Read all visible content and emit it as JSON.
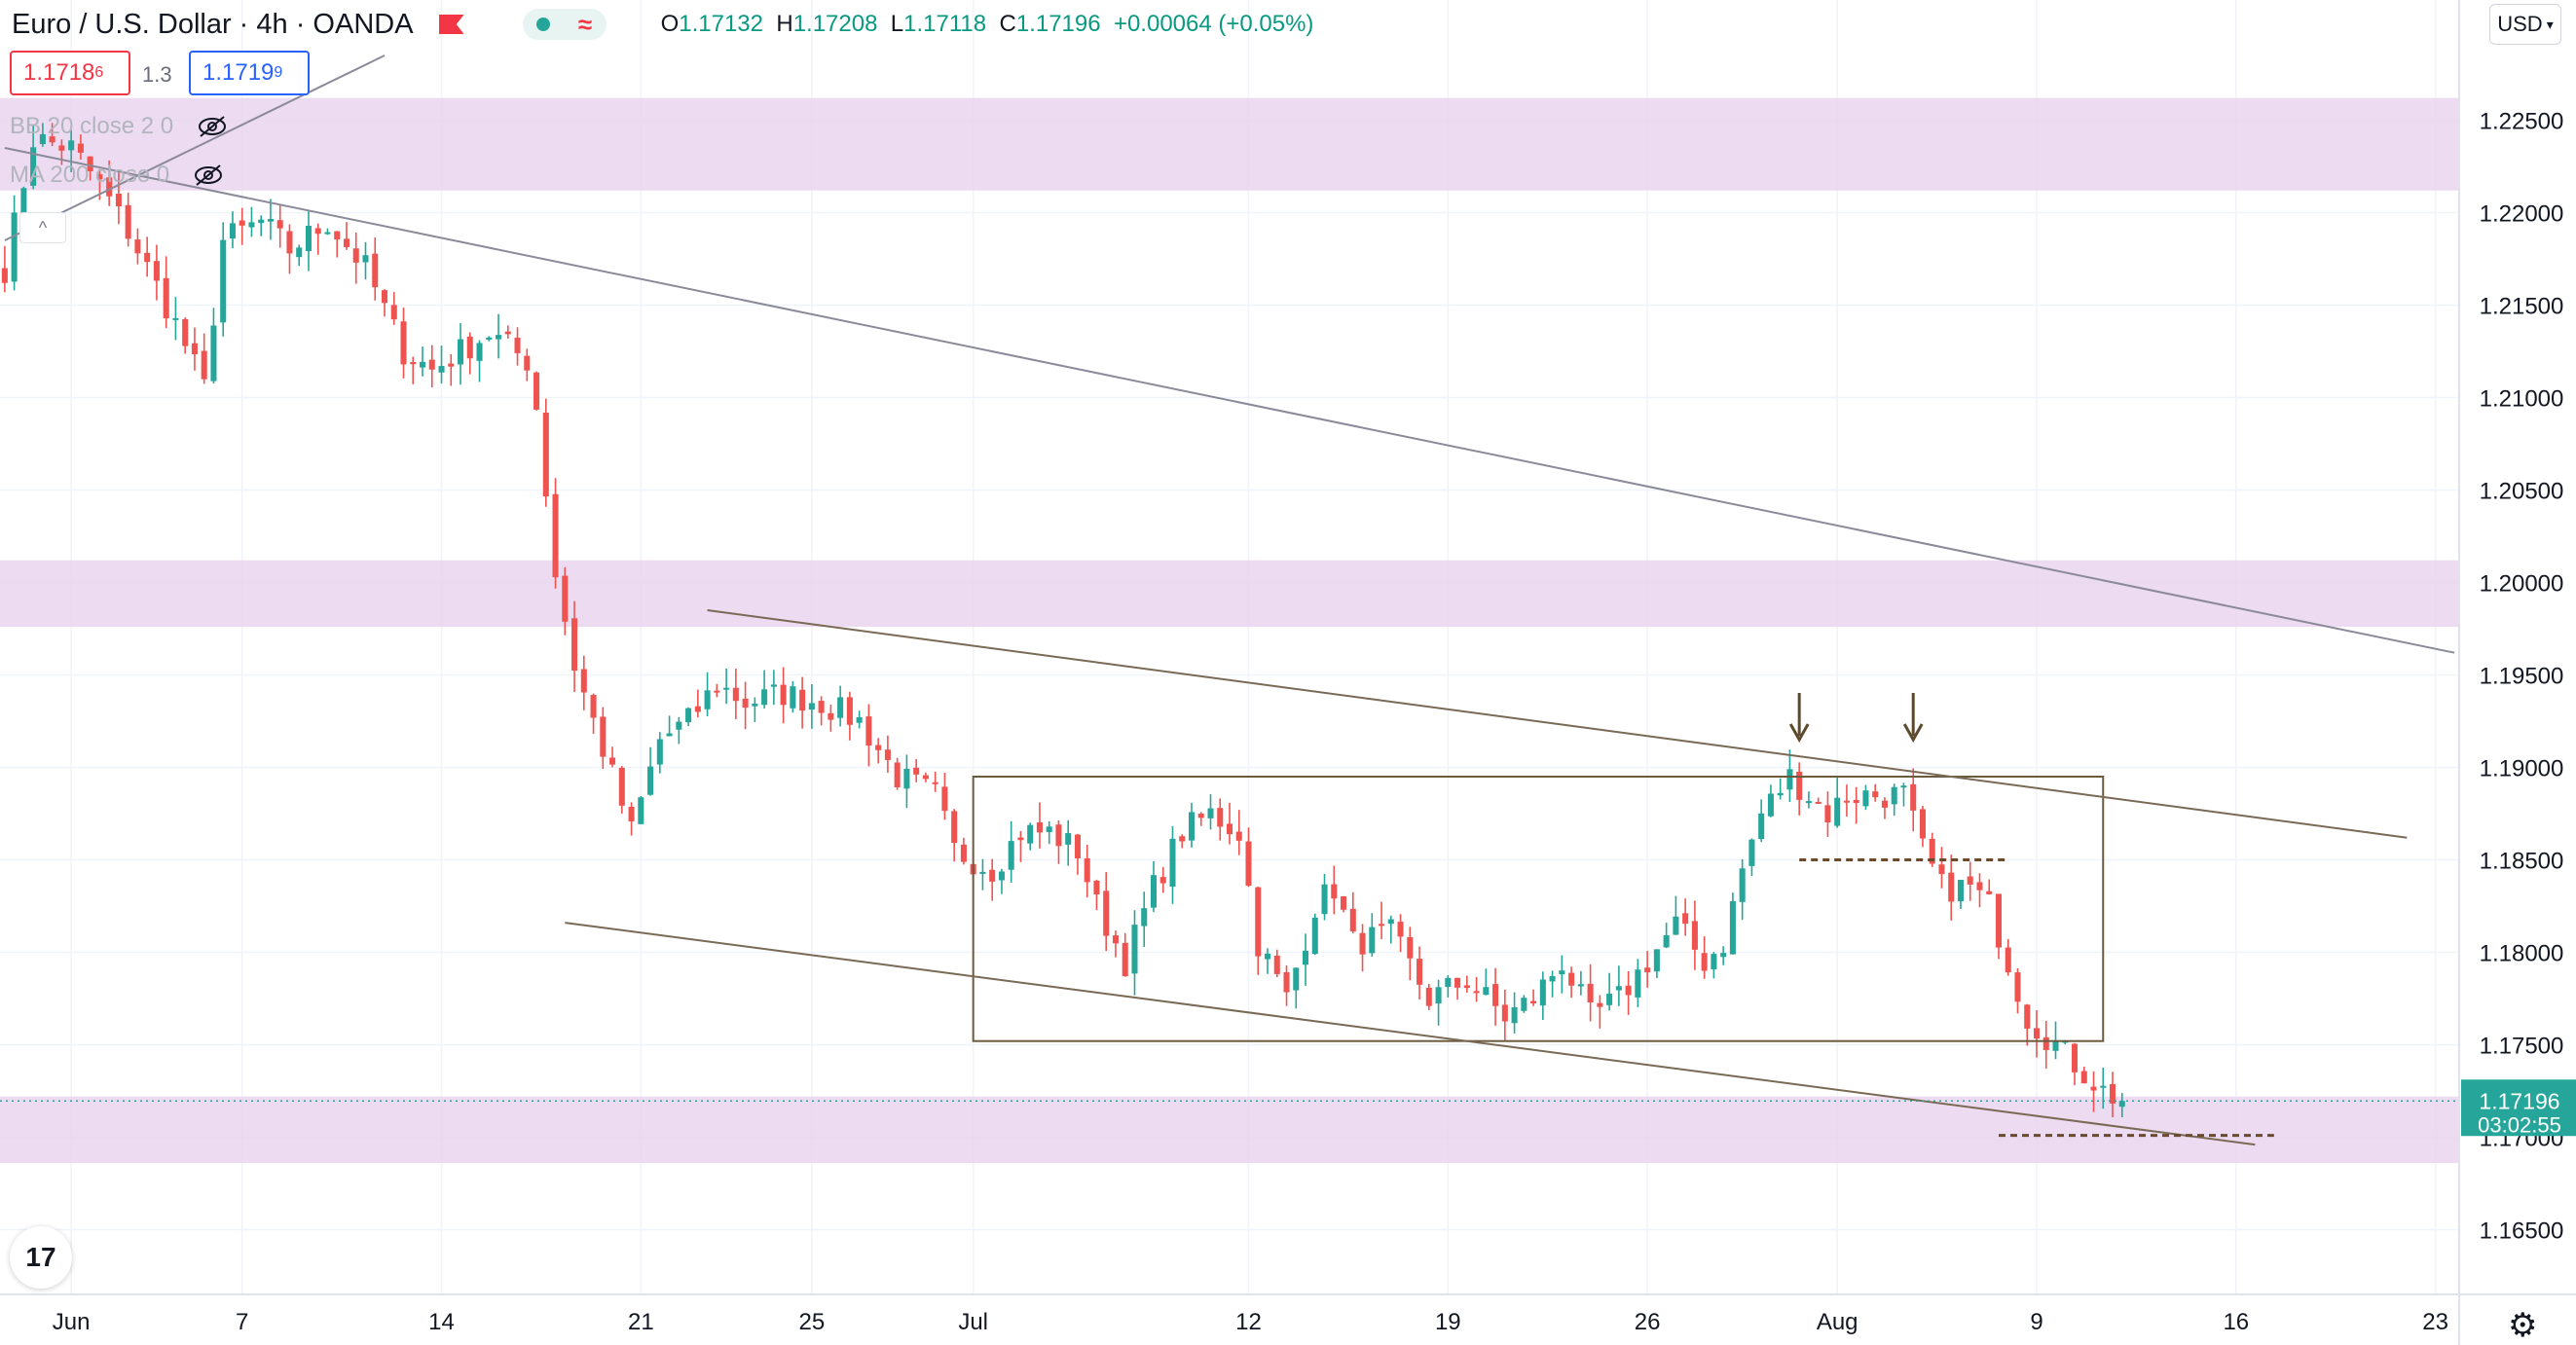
{
  "header": {
    "symbol": "Euro / U.S. Dollar · 4h · OANDA",
    "ohlc": {
      "o_label": "O",
      "o": "1.17132",
      "h_label": "H",
      "h": "1.17208",
      "l_label": "L",
      "l": "1.17118",
      "c_label": "C",
      "c": "1.17196",
      "change": "+0.00064 (+0.05%)"
    },
    "sell_price": "1.1718",
    "sell_sup": "6",
    "spread": "1.3",
    "buy_price": "1.1719",
    "buy_sup": "9",
    "currency": "USD"
  },
  "indicators": [
    {
      "label": "BB 20 close 2 0",
      "icon": "eye-off-icon"
    },
    {
      "label": "MA 200 close 0",
      "icon": "eye-off-icon"
    }
  ],
  "price_label": {
    "price": "1.17196",
    "countdown": "03:02:55"
  },
  "colors": {
    "up": "#26a69a",
    "down": "#ef5350",
    "zone": "#e9d5ee",
    "trendline": "#8a8a9a",
    "channel": "#7a6a55",
    "box": "#6b5b3e",
    "dotted_level": "#6b4a2b",
    "price_tag": "#26a69a"
  },
  "chart_data": {
    "type": "candlestick",
    "title": "Euro / U.S. Dollar 4h OANDA",
    "ylim": [
      1.1615,
      1.2315
    ],
    "y_ticks": [
      1.165,
      1.17,
      1.175,
      1.18,
      1.185,
      1.19,
      1.195,
      1.2,
      1.205,
      1.21,
      1.215,
      1.22,
      1.225
    ],
    "y_tick_labels": [
      "1.16500",
      "1.17000",
      "1.17500",
      "1.18000",
      "1.18500",
      "1.19000",
      "1.19500",
      "1.20000",
      "1.20500",
      "1.21000",
      "1.21500",
      "1.22000",
      "1.22500"
    ],
    "x_tick_labels": [
      {
        "label": "Jun",
        "bar": 7
      },
      {
        "label": "7",
        "bar": 25
      },
      {
        "label": "14",
        "bar": 46
      },
      {
        "label": "21",
        "bar": 67
      },
      {
        "label": "25",
        "bar": 85
      },
      {
        "label": "Jul",
        "bar": 102
      },
      {
        "label": "12",
        "bar": 131
      },
      {
        "label": "19",
        "bar": 152
      },
      {
        "label": "26",
        "bar": 173
      },
      {
        "label": "Aug",
        "bar": 193
      },
      {
        "label": "9",
        "bar": 214
      },
      {
        "label": "16",
        "bar": 235
      },
      {
        "label": "23",
        "bar": 256
      }
    ],
    "bars_per_axis_width": 259,
    "anchors": [
      [
        0,
        1.217
      ],
      [
        3,
        1.224
      ],
      [
        7,
        1.2235
      ],
      [
        10,
        1.2215
      ],
      [
        13,
        1.219
      ],
      [
        18,
        1.214
      ],
      [
        21,
        1.2105
      ],
      [
        23,
        1.2185
      ],
      [
        27,
        1.2195
      ],
      [
        30,
        1.218
      ],
      [
        34,
        1.2195
      ],
      [
        38,
        1.217
      ],
      [
        42,
        1.2125
      ],
      [
        45,
        1.2115
      ],
      [
        48,
        1.2125
      ],
      [
        51,
        1.2135
      ],
      [
        55,
        1.212
      ],
      [
        56,
        1.2095
      ],
      [
        58,
        1.2005
      ],
      [
        60,
        1.1955
      ],
      [
        62,
        1.1925
      ],
      [
        64,
        1.1895
      ],
      [
        66,
        1.1865
      ],
      [
        69,
        1.1915
      ],
      [
        72,
        1.1925
      ],
      [
        75,
        1.1945
      ],
      [
        78,
        1.1935
      ],
      [
        82,
        1.194
      ],
      [
        86,
        1.1935
      ],
      [
        90,
        1.1925
      ],
      [
        94,
        1.1895
      ],
      [
        98,
        1.1885
      ],
      [
        100,
        1.1855
      ],
      [
        104,
        1.1845
      ],
      [
        107,
        1.1865
      ],
      [
        110,
        1.1865
      ],
      [
        113,
        1.1855
      ],
      [
        115,
        1.1825
      ],
      [
        118,
        1.1795
      ],
      [
        121,
        1.1835
      ],
      [
        124,
        1.1865
      ],
      [
        127,
        1.1875
      ],
      [
        130,
        1.1865
      ],
      [
        132,
        1.1805
      ],
      [
        135,
        1.1775
      ],
      [
        138,
        1.1825
      ],
      [
        140,
        1.1835
      ],
      [
        142,
        1.1805
      ],
      [
        146,
        1.181
      ],
      [
        150,
        1.1775
      ],
      [
        154,
        1.1785
      ],
      [
        158,
        1.1765
      ],
      [
        161,
        1.1775
      ],
      [
        164,
        1.1795
      ],
      [
        167,
        1.1765
      ],
      [
        170,
        1.1775
      ],
      [
        173,
        1.1795
      ],
      [
        176,
        1.1815
      ],
      [
        179,
        1.1795
      ],
      [
        181,
        1.1805
      ],
      [
        183,
        1.1845
      ],
      [
        185,
        1.1875
      ],
      [
        188,
        1.1895
      ],
      [
        190,
        1.1885
      ],
      [
        192,
        1.1875
      ],
      [
        194,
        1.1885
      ],
      [
        197,
        1.1885
      ],
      [
        200,
        1.1885
      ],
      [
        202,
        1.1855
      ],
      [
        204,
        1.1835
      ],
      [
        207,
        1.1835
      ],
      [
        209,
        1.1825
      ],
      [
        211,
        1.1795
      ],
      [
        213,
        1.1765
      ],
      [
        215,
        1.1755
      ],
      [
        217,
        1.1745
      ],
      [
        219,
        1.1735
      ],
      [
        221,
        1.1725
      ],
      [
        223,
        1.17196
      ]
    ],
    "last_bar": 223,
    "zones": [
      {
        "from": 1.2212,
        "to": 1.2262
      },
      {
        "from": 1.1976,
        "to": 1.2012
      },
      {
        "from": 1.1686,
        "to": 1.1722
      }
    ],
    "range_box": {
      "x0_bar": 102,
      "x1_bar": 221,
      "y_top": 1.1895,
      "y_bottom": 1.1752
    },
    "trendlines": [
      {
        "kind": "long-down",
        "p1": [
          0,
          1.2235
        ],
        "p2": [
          258,
          1.1962
        ]
      },
      {
        "kind": "channel-top",
        "p1": [
          74,
          1.1985
        ],
        "p2": [
          253,
          1.1862
        ]
      },
      {
        "kind": "channel-bottom",
        "p1": [
          59,
          1.1816
        ],
        "p2": [
          237,
          1.1696
        ]
      },
      {
        "kind": "topleft",
        "p1": [
          0,
          1.2185
        ],
        "p2": [
          40,
          1.2285
        ]
      }
    ],
    "dotted_levels": [
      {
        "y": 1.185,
        "x0_bar": 189,
        "x1_bar": 211
      },
      {
        "y": 1.1701,
        "x0_bar": 210,
        "x1_bar": 239
      }
    ],
    "annotations": [
      {
        "type": "arrow-down",
        "bar": 189,
        "y": 1.1915
      },
      {
        "type": "arrow-down",
        "bar": 201,
        "y": 1.1915
      }
    ],
    "current_price": 1.17196,
    "grid": true
  }
}
